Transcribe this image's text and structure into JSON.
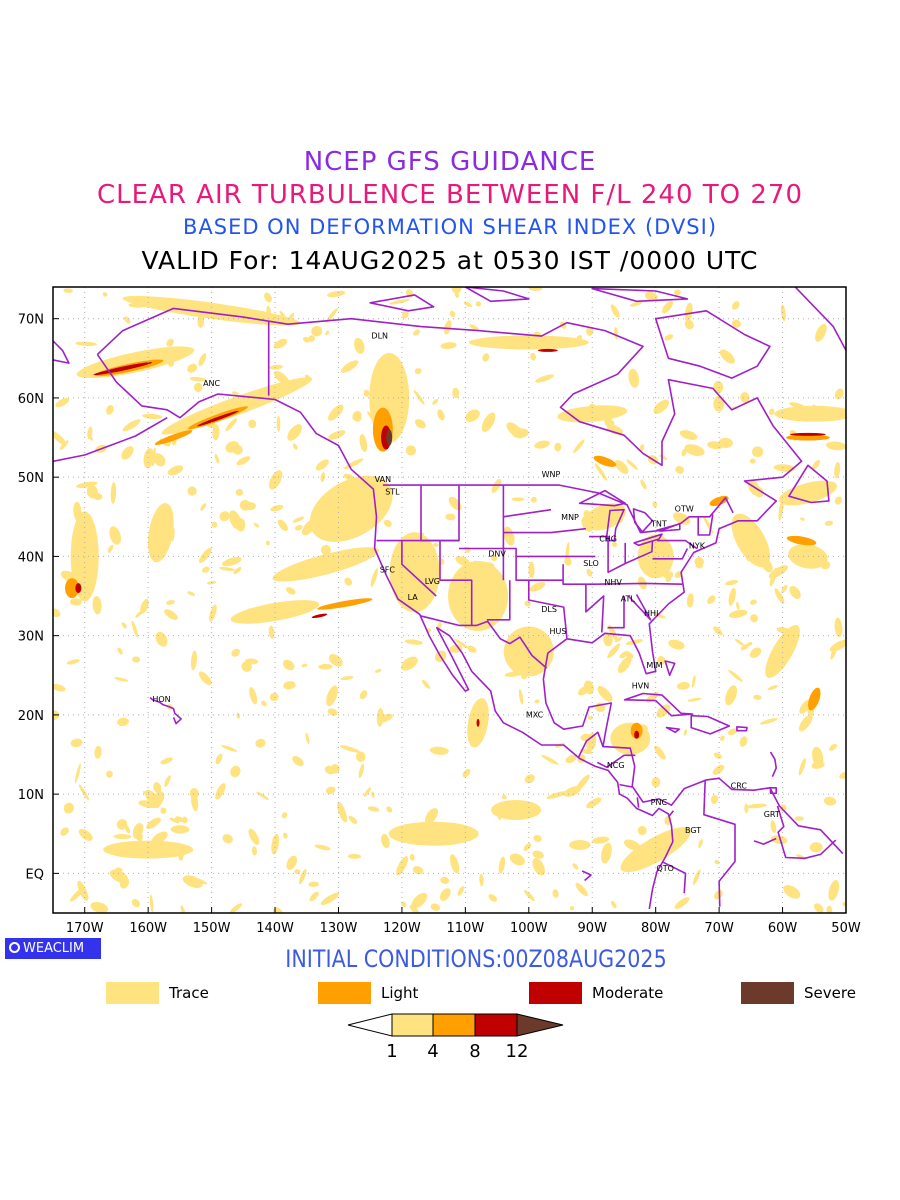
{
  "title": {
    "line1": "NCEP GFS GUIDANCE",
    "line2": "CLEAR AIR TURBULENCE BETWEEN F/L 240 TO 270",
    "line3": "BASED ON DEFORMATION SHEAR INDEX (DVSI)",
    "line4": "VALID For: 14AUG2025 at 0530 IST /0000 UTC"
  },
  "colors": {
    "line1": "#8a2be2",
    "line2": "#e8197b",
    "line3": "#2255ee",
    "boundary": "#a020c8",
    "trace": "#ffe380",
    "light": "#ffa000",
    "moderate": "#c00000",
    "severe": "#6b3a2a",
    "grid": "#b0b0b0",
    "init": "#3d5be0",
    "badge": "#3333ee"
  },
  "map": {
    "lat_labels": [
      "70N",
      "60N",
      "50N",
      "40N",
      "30N",
      "20N",
      "10N",
      "EQ"
    ],
    "lon_labels": [
      "170W",
      "160W",
      "150W",
      "140W",
      "130W",
      "120W",
      "110W",
      "100W",
      "90W",
      "80W",
      "70W",
      "60W",
      "50W"
    ],
    "cities": [
      {
        "name": "DLN",
        "lon": -123.5,
        "lat": 67.5
      },
      {
        "name": "ANC",
        "lon": -150.0,
        "lat": 61.5
      },
      {
        "name": "VAN",
        "lon": -123.0,
        "lat": 49.4
      },
      {
        "name": "STL",
        "lon": -121.5,
        "lat": 47.8
      },
      {
        "name": "WNP",
        "lon": -96.5,
        "lat": 50.0
      },
      {
        "name": "OTW",
        "lon": -75.5,
        "lat": 45.7
      },
      {
        "name": "TNT",
        "lon": -79.5,
        "lat": 43.8
      },
      {
        "name": "MNP",
        "lon": -93.5,
        "lat": 44.6
      },
      {
        "name": "CHG",
        "lon": -87.5,
        "lat": 41.9
      },
      {
        "name": "NYK",
        "lon": -73.5,
        "lat": 41.0
      },
      {
        "name": "DNV",
        "lon": -105.0,
        "lat": 40.0
      },
      {
        "name": "SFC",
        "lon": -122.3,
        "lat": 38.0
      },
      {
        "name": "SLO",
        "lon": -90.2,
        "lat": 38.8
      },
      {
        "name": "LVG",
        "lon": -115.2,
        "lat": 36.5
      },
      {
        "name": "NHV",
        "lon": -86.7,
        "lat": 36.4
      },
      {
        "name": "ATL",
        "lon": -84.4,
        "lat": 34.3
      },
      {
        "name": "LA",
        "lon": -118.3,
        "lat": 34.5
      },
      {
        "name": "DLS",
        "lon": -96.8,
        "lat": 33.0
      },
      {
        "name": "HHI",
        "lon": -80.7,
        "lat": 32.5
      },
      {
        "name": "HUS",
        "lon": -95.4,
        "lat": 30.2
      },
      {
        "name": "MIM",
        "lon": -80.2,
        "lat": 25.9
      },
      {
        "name": "HVN",
        "lon": -82.4,
        "lat": 23.3
      },
      {
        "name": "HON",
        "lon": -157.9,
        "lat": 21.6
      },
      {
        "name": "MXC",
        "lon": -99.1,
        "lat": 19.7
      },
      {
        "name": "NCG",
        "lon": -86.3,
        "lat": 13.3
      },
      {
        "name": "CRC",
        "lon": -66.9,
        "lat": 10.7
      },
      {
        "name": "PNC",
        "lon": -79.5,
        "lat": 8.6
      },
      {
        "name": "GRT",
        "lon": -61.7,
        "lat": 7.1
      },
      {
        "name": "BGT",
        "lon": -74.1,
        "lat": 5.1
      },
      {
        "name": "QTO",
        "lon": -78.5,
        "lat": 0.3
      }
    ]
  },
  "badge": "WEACLIM",
  "init_conditions": "INITIAL CONDITIONS:00Z08AUG2025",
  "legend": [
    {
      "label": "Trace",
      "color": "#ffe380"
    },
    {
      "label": "Light",
      "color": "#ffa000"
    },
    {
      "label": "Moderate",
      "color": "#c00000"
    },
    {
      "label": "Severe",
      "color": "#6b3a2a"
    }
  ],
  "scale": {
    "ticks": [
      "1",
      "4",
      "8",
      "12"
    ]
  }
}
